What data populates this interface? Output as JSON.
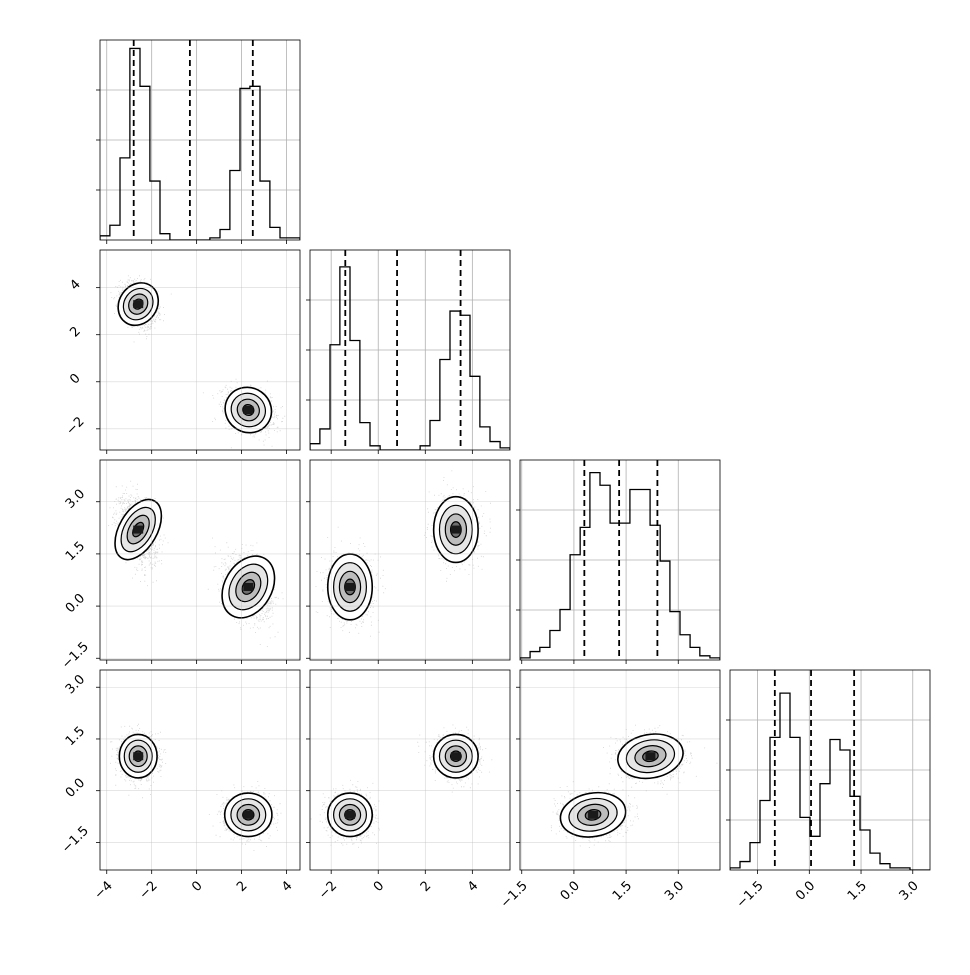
{
  "chart_data": {
    "type": "corner",
    "dims": 4,
    "colors": {
      "line": "#000000",
      "grid": "#b0b0b0",
      "scatter": "#808080"
    },
    "grid": true,
    "ranges": [
      [
        -4.3,
        4.6
      ],
      [
        -2.9,
        5.6
      ],
      [
        -1.55,
        4.2
      ],
      [
        -2.3,
        3.5
      ]
    ],
    "ticks": [
      {
        "values": [
          -4,
          -2,
          0,
          2,
          4
        ],
        "labels": [
          "−4",
          "−2",
          "0",
          "2",
          "4"
        ]
      },
      {
        "values": [
          -2,
          0,
          2,
          4
        ],
        "labels": [
          "−2",
          "0",
          "2",
          "4"
        ]
      },
      {
        "values": [
          -1.5,
          0,
          1.5,
          3
        ],
        "labels": [
          "−1.5",
          "0.0",
          "1.5",
          "3.0"
        ]
      },
      {
        "values": [
          -1.5,
          0,
          1.5,
          3
        ],
        "labels": [
          "−1.5",
          "0.0",
          "1.5",
          "3.0"
        ]
      }
    ],
    "quantiles": [
      [
        -2.8,
        -0.3,
        2.5
      ],
      [
        -1.4,
        0.8,
        3.5
      ],
      [
        0.3,
        1.3,
        2.4
      ],
      [
        -1.0,
        0.05,
        1.3
      ]
    ],
    "modes": [
      {
        "weight": 0.5,
        "mean": [
          -2.6,
          3.3,
          2.2,
          1.0
        ],
        "sd": [
          0.4,
          0.45,
          0.45,
          0.3
        ]
      },
      {
        "weight": 0.5,
        "mean": [
          2.3,
          -1.2,
          0.55,
          -0.7
        ],
        "sd": [
          0.5,
          0.45,
          0.45,
          0.3
        ]
      }
    ],
    "histograms": [
      {
        "edges": [
          -4.3,
          -3.86,
          -3.41,
          -2.97,
          -2.52,
          -2.08,
          -1.63,
          -1.19,
          -0.74,
          -0.3,
          0.15,
          0.59,
          1.04,
          1.48,
          1.93,
          2.37,
          2.82,
          3.26,
          3.71,
          4.15,
          4.6
        ],
        "counts": [
          0.02,
          0.07,
          0.39,
          0.91,
          0.73,
          0.28,
          0.03,
          0,
          0,
          0,
          0,
          0.01,
          0.05,
          0.33,
          0.72,
          0.73,
          0.28,
          0.06,
          0.01,
          0.01
        ],
        "ylim": [
          0,
          0.95
        ]
      },
      {
        "edges": [
          -2.9,
          -2.48,
          -2.05,
          -1.63,
          -1.2,
          -0.78,
          -0.35,
          0.08,
          0.5,
          0.93,
          1.35,
          1.78,
          2.2,
          2.62,
          3.05,
          3.48,
          3.9,
          4.32,
          4.75,
          5.18,
          5.6
        ],
        "counts": [
          0.03,
          0.1,
          0.5,
          0.87,
          0.52,
          0.13,
          0.02,
          0,
          0,
          0,
          0,
          0.02,
          0.14,
          0.43,
          0.66,
          0.64,
          0.35,
          0.11,
          0.04,
          0.01
        ],
        "ylim": [
          0,
          0.95
        ]
      },
      {
        "edges": [
          -1.55,
          -1.26,
          -0.98,
          -0.69,
          -0.4,
          -0.11,
          0.18,
          0.46,
          0.75,
          1.04,
          1.32,
          1.61,
          1.9,
          2.19,
          2.48,
          2.76,
          3.05,
          3.34,
          3.62,
          3.91,
          4.2
        ],
        "counts": [
          0.01,
          0.04,
          0.06,
          0.14,
          0.24,
          0.5,
          0.63,
          0.89,
          0.83,
          0.65,
          0.65,
          0.81,
          0.81,
          0.64,
          0.47,
          0.23,
          0.12,
          0.06,
          0.02,
          0.01
        ],
        "ylim": [
          0,
          0.95
        ]
      },
      {
        "edges": [
          -2.3,
          -2.01,
          -1.72,
          -1.43,
          -1.14,
          -0.85,
          -0.56,
          -0.27,
          0.02,
          0.31,
          0.6,
          0.89,
          1.18,
          1.47,
          1.76,
          2.05,
          2.34,
          2.63,
          2.92,
          3.21,
          3.5
        ],
        "counts": [
          0.01,
          0.04,
          0.13,
          0.33,
          0.63,
          0.84,
          0.63,
          0.25,
          0.16,
          0.41,
          0.62,
          0.57,
          0.35,
          0.19,
          0.08,
          0.03,
          0.01,
          0.01,
          0,
          0
        ],
        "ylim": [
          0,
          0.95
        ]
      }
    ],
    "title": "",
    "xlabel": "",
    "ylabel": ""
  }
}
